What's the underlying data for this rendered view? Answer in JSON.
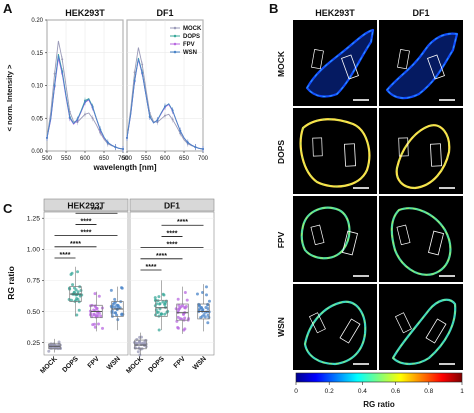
{
  "panels": {
    "a": "A",
    "b": "B",
    "c": "C"
  },
  "colors": {
    "mock": "#9a9ab8",
    "dops": "#3aa89a",
    "fpv": "#b868e0",
    "wsn": "#4a84c8",
    "strip": "#d8d8d8"
  },
  "chart_data": [
    {
      "type": "line",
      "panel": "A",
      "facets": [
        "HEK293T",
        "DF1"
      ],
      "xlabel": "wavelength [nm]",
      "ylabel": "< norm. Intensity >",
      "xlim": [
        500,
        700
      ],
      "ylim": [
        0,
        0.2
      ],
      "xticks": [
        "500",
        "550",
        "600",
        "650",
        "700"
      ],
      "yticks": [
        "0.00",
        "0.05",
        "0.10",
        "0.15",
        "0.20"
      ],
      "x": [
        500,
        510,
        520,
        530,
        540,
        550,
        560,
        570,
        580,
        590,
        600,
        610,
        620,
        630,
        640,
        650,
        660,
        670,
        680,
        690,
        700
      ],
      "legend_position": "top-right",
      "series": {
        "HEK293T": [
          {
            "name": "MOCK",
            "values": [
              0.02,
              0.06,
              0.118,
              0.168,
              0.14,
              0.1,
              0.06,
              0.045,
              0.044,
              0.05,
              0.056,
              0.058,
              0.05,
              0.04,
              0.028,
              0.018,
              0.011,
              0.008,
              0.006,
              0.004,
              0.003
            ]
          },
          {
            "name": "DOPS",
            "values": [
              0.02,
              0.05,
              0.1,
              0.148,
              0.122,
              0.085,
              0.052,
              0.042,
              0.048,
              0.062,
              0.077,
              0.08,
              0.068,
              0.05,
              0.033,
              0.021,
              0.013,
              0.009,
              0.006,
              0.004,
              0.003
            ]
          },
          {
            "name": "FPV",
            "values": [
              0.02,
              0.048,
              0.098,
              0.142,
              0.118,
              0.082,
              0.05,
              0.041,
              0.047,
              0.06,
              0.074,
              0.078,
              0.066,
              0.049,
              0.032,
              0.02,
              0.013,
              0.009,
              0.006,
              0.004,
              0.003
            ]
          },
          {
            "name": "WSN",
            "values": [
              0.02,
              0.05,
              0.1,
              0.146,
              0.12,
              0.084,
              0.051,
              0.042,
              0.048,
              0.061,
              0.075,
              0.079,
              0.067,
              0.049,
              0.033,
              0.021,
              0.013,
              0.009,
              0.006,
              0.004,
              0.003
            ]
          }
        ],
        "DF1": [
          {
            "name": "MOCK",
            "values": [
              0.02,
              0.065,
              0.12,
              0.158,
              0.132,
              0.094,
              0.058,
              0.045,
              0.044,
              0.049,
              0.054,
              0.056,
              0.048,
              0.038,
              0.027,
              0.017,
              0.011,
              0.008,
              0.006,
              0.004,
              0.003
            ]
          },
          {
            "name": "DOPS",
            "values": [
              0.02,
              0.058,
              0.108,
              0.142,
              0.12,
              0.086,
              0.053,
              0.043,
              0.047,
              0.058,
              0.068,
              0.072,
              0.062,
              0.046,
              0.031,
              0.02,
              0.013,
              0.009,
              0.006,
              0.004,
              0.003
            ]
          },
          {
            "name": "FPV",
            "values": [
              0.02,
              0.056,
              0.106,
              0.14,
              0.118,
              0.085,
              0.052,
              0.043,
              0.047,
              0.057,
              0.067,
              0.071,
              0.061,
              0.046,
              0.031,
              0.02,
              0.013,
              0.009,
              0.006,
              0.004,
              0.003
            ]
          },
          {
            "name": "WSN",
            "values": [
              0.02,
              0.057,
              0.107,
              0.141,
              0.119,
              0.085,
              0.052,
              0.043,
              0.047,
              0.058,
              0.068,
              0.072,
              0.062,
              0.046,
              0.031,
              0.02,
              0.013,
              0.009,
              0.006,
              0.004,
              0.003
            ]
          }
        ]
      }
    },
    {
      "type": "box",
      "panel": "C",
      "facets": [
        "HEK293T",
        "DF1"
      ],
      "ylabel": "RG ratio",
      "ylim": [
        0.15,
        1.3
      ],
      "yticks": [
        "0.25",
        "0.50",
        "0.75",
        "1.00",
        "1.25"
      ],
      "categories": [
        "MOCK",
        "DOPS",
        "FPV",
        "WSN"
      ],
      "significance": "****",
      "comparisons": [
        {
          "from": "MOCK",
          "to": "DOPS",
          "y": 0.93
        },
        {
          "from": "MOCK",
          "to": "FPV",
          "y": 1.02
        },
        {
          "from": "MOCK",
          "to": "WSN",
          "y": 1.11
        },
        {
          "from": "DOPS",
          "to": "FPV",
          "y": 1.2
        },
        {
          "from": "DOPS",
          "to": "WSN",
          "y": 1.29
        }
      ],
      "series": {
        "HEK293T": [
          {
            "name": "MOCK",
            "q1": 0.2,
            "median": 0.22,
            "q3": 0.24,
            "whisker_low": 0.17,
            "whisker_high": 0.28
          },
          {
            "name": "DOPS",
            "q1": 0.58,
            "median": 0.64,
            "q3": 0.7,
            "whisker_low": 0.46,
            "whisker_high": 0.86
          },
          {
            "name": "FPV",
            "q1": 0.45,
            "median": 0.5,
            "q3": 0.55,
            "whisker_low": 0.34,
            "whisker_high": 0.66
          },
          {
            "name": "WSN",
            "q1": 0.46,
            "median": 0.52,
            "q3": 0.58,
            "whisker_low": 0.35,
            "whisker_high": 0.7
          }
        ],
        "DF1": [
          {
            "name": "MOCK",
            "q1": 0.2,
            "median": 0.23,
            "q3": 0.27,
            "whisker_low": 0.15,
            "whisker_high": 0.33
          },
          {
            "name": "DOPS",
            "q1": 0.46,
            "median": 0.53,
            "q3": 0.59,
            "whisker_low": 0.35,
            "whisker_high": 0.75
          },
          {
            "name": "FPV",
            "q1": 0.43,
            "median": 0.49,
            "q3": 0.56,
            "whisker_low": 0.32,
            "whisker_high": 0.7
          },
          {
            "name": "WSN",
            "q1": 0.44,
            "median": 0.5,
            "q3": 0.56,
            "whisker_low": 0.34,
            "whisker_high": 0.72
          }
        ]
      }
    }
  ],
  "micrographs": {
    "columns": [
      "HEK293T",
      "DF1"
    ],
    "rows": [
      "MOCK",
      "DOPS",
      "FPV",
      "WSN"
    ]
  },
  "colorbar": {
    "label": "RG ratio",
    "ticks": [
      "0",
      "0.2",
      "0.4",
      "0.6",
      "0.8",
      "1"
    ]
  }
}
